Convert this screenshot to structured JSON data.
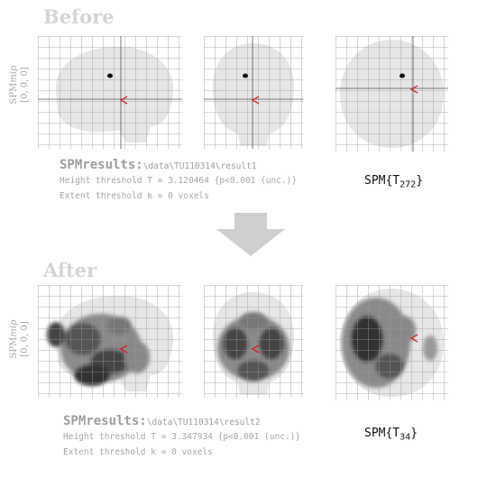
{
  "before": {
    "heading": "Before",
    "spm_label": {
      "prefix": "SPM",
      "italic": "mip",
      "coords": "[0, 0, 0]"
    },
    "results": {
      "title": "SPMresults:",
      "path": "\\data\\TU110314\\result1",
      "height_threshold": "Height threshold T = 3.120464  {p<0.001 (unc.)}",
      "extent_threshold": "Extent threshold k = 0 voxels"
    },
    "stat": {
      "prefix": "SPM{T",
      "sub": "272",
      "suffix": "}"
    }
  },
  "after": {
    "heading": "After",
    "spm_label": {
      "prefix": "SPM",
      "italic": "mip",
      "coords": "[0, 0, 0]"
    },
    "results": {
      "title": "SPMresults:",
      "path": "\\data\\TU110314\\result2",
      "height_threshold": "Height threshold T = 3.347934  {p<0.001 (unc.)}",
      "extent_threshold": "Extent threshold k = 0 voxels"
    },
    "stat": {
      "prefix": "SPM{T",
      "sub": "34",
      "suffix": "}"
    }
  },
  "colors": {
    "heading": "#d4d4d4",
    "grid": "#9a9a9a",
    "brain": "#e4e4e4",
    "cursor": "#e01010",
    "arrow": "#cfcfcf"
  },
  "icons": [
    "arrow-down-icon",
    "cursor-marker-icon"
  ]
}
